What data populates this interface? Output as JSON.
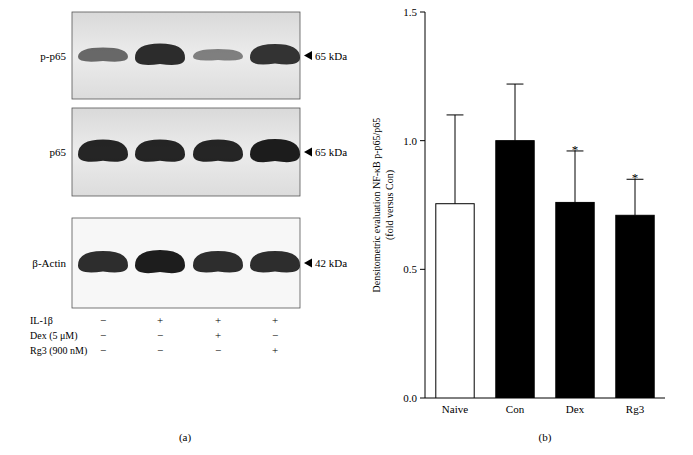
{
  "blot": {
    "panel_label": "(a)",
    "bands": [
      {
        "label": "p-p65",
        "size": "65 kDa",
        "intensities": [
          0.5,
          0.9,
          0.35,
          0.85
        ]
      },
      {
        "label": "p65",
        "size": "65 kDa",
        "intensities": [
          0.95,
          0.95,
          0.95,
          1.0
        ]
      },
      {
        "label": "β-Actin",
        "size": "42 kDa",
        "intensities": [
          0.9,
          1.0,
          0.9,
          0.9
        ]
      }
    ],
    "treatments": [
      {
        "label": "IL-1β",
        "signs": [
          "−",
          "+",
          "+",
          "+"
        ]
      },
      {
        "label": "Dex (5 μM)",
        "signs": [
          "−",
          "−",
          "+",
          "−"
        ]
      },
      {
        "label": "Rg3 (900 nM)",
        "signs": [
          "−",
          "−",
          "−",
          "+"
        ]
      }
    ]
  },
  "chart_data": {
    "type": "bar",
    "panel_label": "(b)",
    "ylabel": [
      "Densitometric evaluation NF-κB p-p65/p65",
      "(fold versus Con)"
    ],
    "categories": [
      "Naive",
      "Con",
      "Dex",
      "Rg3"
    ],
    "values": [
      0.755,
      1.0,
      0.76,
      0.71
    ],
    "errors": [
      0.345,
      0.22,
      0.2,
      0.14
    ],
    "significance": [
      null,
      null,
      "*",
      "*"
    ],
    "colors": [
      "#ffffff",
      "#000000",
      "#000000",
      "#000000"
    ],
    "ylim": [
      0,
      1.5
    ],
    "yticks": [
      {
        "value": 0,
        "label": "0.0"
      },
      0.5,
      {
        "value": 1,
        "label": "1.0"
      },
      1.5
    ]
  }
}
